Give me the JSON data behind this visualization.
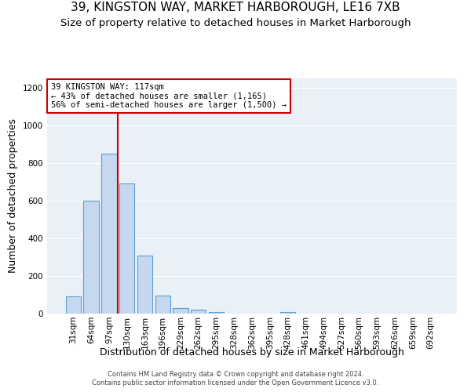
{
  "title": "39, KINGSTON WAY, MARKET HARBOROUGH, LE16 7XB",
  "subtitle": "Size of property relative to detached houses in Market Harborough",
  "xlabel": "Distribution of detached houses by size in Market Harborough",
  "ylabel": "Number of detached properties",
  "categories": [
    "31sqm",
    "64sqm",
    "97sqm",
    "130sqm",
    "163sqm",
    "196sqm",
    "229sqm",
    "262sqm",
    "295sqm",
    "328sqm",
    "362sqm",
    "395sqm",
    "428sqm",
    "461sqm",
    "494sqm",
    "527sqm",
    "560sqm",
    "593sqm",
    "626sqm",
    "659sqm",
    "692sqm"
  ],
  "values": [
    90,
    600,
    850,
    690,
    310,
    95,
    30,
    20,
    10,
    0,
    0,
    0,
    10,
    0,
    0,
    0,
    0,
    0,
    0,
    0,
    0
  ],
  "bar_color": "#c5d8f0",
  "bar_edge_color": "#5a9fd4",
  "vline_color": "#cc0000",
  "annotation_text": "39 KINGSTON WAY: 117sqm\n← 43% of detached houses are smaller (1,165)\n56% of semi-detached houses are larger (1,500) →",
  "annotation_box_color": "#ffffff",
  "annotation_box_edge_color": "#cc0000",
  "ylim": [
    0,
    1250
  ],
  "yticks": [
    0,
    200,
    400,
    600,
    800,
    1000,
    1200
  ],
  "bg_color": "#eaf0f8",
  "footer1": "Contains HM Land Registry data © Crown copyright and database right 2024.",
  "footer2": "Contains public sector information licensed under the Open Government Licence v3.0.",
  "title_fontsize": 11,
  "subtitle_fontsize": 9.5,
  "xlabel_fontsize": 9,
  "ylabel_fontsize": 9,
  "tick_fontsize": 7.5,
  "annotation_fontsize": 7.5,
  "footer_fontsize": 6
}
